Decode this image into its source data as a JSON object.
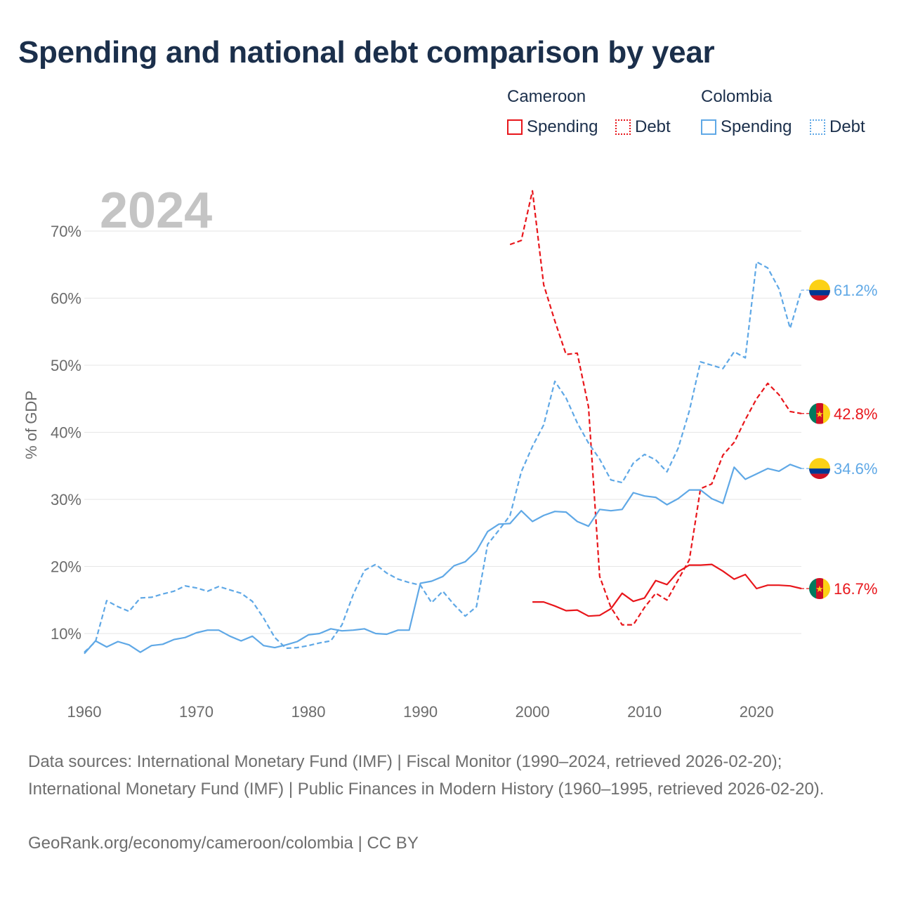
{
  "title": "Spending and national debt comparison by year",
  "legend": {
    "groups": [
      {
        "country": "Cameroon",
        "color": "#e8161b",
        "spending_label": "Spending",
        "debt_label": "Debt"
      },
      {
        "country": "Colombia",
        "color": "#5fa8e6",
        "spending_label": "Spending",
        "debt_label": "Debt"
      }
    ]
  },
  "chart_data": {
    "type": "line",
    "title": "Spending and national debt comparison by year",
    "ylabel": "% of GDP",
    "xlabel": "",
    "year_shown": "2024",
    "xlim": [
      1960,
      2024
    ],
    "ylim": [
      3,
      75
    ],
    "x_ticks": [
      1960,
      1970,
      1980,
      1990,
      2000,
      2010,
      2020
    ],
    "y_ticks": [
      10,
      20,
      30,
      40,
      50,
      60,
      70
    ],
    "y_tick_labels": [
      "10%",
      "20%",
      "30%",
      "40%",
      "50%",
      "60%",
      "70%"
    ],
    "series": [
      {
        "name": "Cameroon Spending",
        "country": "Cameroon",
        "metric": "Spending",
        "color": "#e8161b",
        "dash": false,
        "flag": "cameroon",
        "end_label": "16.7%",
        "points": [
          [
            2000,
            14.7
          ],
          [
            2001,
            14.7
          ],
          [
            2002,
            14.1
          ],
          [
            2003,
            13.4
          ],
          [
            2004,
            13.5
          ],
          [
            2005,
            12.6
          ],
          [
            2006,
            12.7
          ],
          [
            2007,
            13.7
          ],
          [
            2008,
            16.0
          ],
          [
            2009,
            14.8
          ],
          [
            2010,
            15.3
          ],
          [
            2011,
            17.9
          ],
          [
            2012,
            17.3
          ],
          [
            2013,
            19.2
          ],
          [
            2014,
            20.2
          ],
          [
            2015,
            20.2
          ],
          [
            2016,
            20.3
          ],
          [
            2017,
            19.3
          ],
          [
            2018,
            18.1
          ],
          [
            2019,
            18.8
          ],
          [
            2020,
            16.7
          ],
          [
            2021,
            17.2
          ],
          [
            2022,
            17.2
          ],
          [
            2023,
            17.1
          ],
          [
            2024,
            16.7
          ]
        ]
      },
      {
        "name": "Cameroon Debt",
        "country": "Cameroon",
        "metric": "Debt",
        "color": "#e8161b",
        "dash": true,
        "flag": "cameroon",
        "end_label": "42.8%",
        "points": [
          [
            1998,
            68.0
          ],
          [
            1999,
            68.6
          ],
          [
            2000,
            76.0
          ],
          [
            2001,
            62.0
          ],
          [
            2002,
            56.6
          ],
          [
            2003,
            51.6
          ],
          [
            2004,
            51.8
          ],
          [
            2005,
            43.8
          ],
          [
            2006,
            18.5
          ],
          [
            2007,
            13.9
          ],
          [
            2008,
            11.3
          ],
          [
            2009,
            11.3
          ],
          [
            2010,
            13.9
          ],
          [
            2011,
            16.0
          ],
          [
            2012,
            15.0
          ],
          [
            2013,
            18.0
          ],
          [
            2014,
            21.0
          ],
          [
            2015,
            31.6
          ],
          [
            2016,
            32.3
          ],
          [
            2017,
            36.6
          ],
          [
            2018,
            38.5
          ],
          [
            2019,
            41.9
          ],
          [
            2020,
            45.0
          ],
          [
            2021,
            47.3
          ],
          [
            2022,
            45.6
          ],
          [
            2023,
            43.1
          ],
          [
            2024,
            42.8
          ]
        ]
      },
      {
        "name": "Colombia Spending",
        "country": "Colombia",
        "metric": "Spending",
        "color": "#5fa8e6",
        "dash": false,
        "flag": "colombia",
        "end_label": "34.6%",
        "points": [
          [
            1960,
            7.0
          ],
          [
            1961,
            8.9
          ],
          [
            1962,
            8.0
          ],
          [
            1963,
            8.8
          ],
          [
            1964,
            8.3
          ],
          [
            1965,
            7.2
          ],
          [
            1966,
            8.2
          ],
          [
            1967,
            8.4
          ],
          [
            1968,
            9.1
          ],
          [
            1969,
            9.4
          ],
          [
            1970,
            10.1
          ],
          [
            1971,
            10.5
          ],
          [
            1972,
            10.5
          ],
          [
            1973,
            9.6
          ],
          [
            1974,
            8.9
          ],
          [
            1975,
            9.6
          ],
          [
            1976,
            8.2
          ],
          [
            1977,
            7.9
          ],
          [
            1978,
            8.3
          ],
          [
            1979,
            8.8
          ],
          [
            1980,
            9.8
          ],
          [
            1981,
            10.0
          ],
          [
            1982,
            10.7
          ],
          [
            1983,
            10.4
          ],
          [
            1984,
            10.5
          ],
          [
            1985,
            10.7
          ],
          [
            1986,
            10.0
          ],
          [
            1987,
            9.9
          ],
          [
            1988,
            10.5
          ],
          [
            1989,
            10.5
          ],
          [
            1990,
            17.5
          ],
          [
            1991,
            17.8
          ],
          [
            1992,
            18.5
          ],
          [
            1993,
            20.1
          ],
          [
            1994,
            20.7
          ],
          [
            1995,
            22.3
          ],
          [
            1996,
            25.2
          ],
          [
            1997,
            26.3
          ],
          [
            1998,
            26.4
          ],
          [
            1999,
            28.3
          ],
          [
            2000,
            26.7
          ],
          [
            2001,
            27.6
          ],
          [
            2002,
            28.2
          ],
          [
            2003,
            28.1
          ],
          [
            2004,
            26.7
          ],
          [
            2005,
            26.0
          ],
          [
            2006,
            28.5
          ],
          [
            2007,
            28.3
          ],
          [
            2008,
            28.5
          ],
          [
            2009,
            31.0
          ],
          [
            2010,
            30.5
          ],
          [
            2011,
            30.3
          ],
          [
            2012,
            29.2
          ],
          [
            2013,
            30.1
          ],
          [
            2014,
            31.4
          ],
          [
            2015,
            31.4
          ],
          [
            2016,
            30.1
          ],
          [
            2017,
            29.4
          ],
          [
            2018,
            34.8
          ],
          [
            2019,
            33.0
          ],
          [
            2020,
            33.8
          ],
          [
            2021,
            34.6
          ],
          [
            2022,
            34.2
          ],
          [
            2023,
            35.2
          ],
          [
            2024,
            34.6
          ]
        ]
      },
      {
        "name": "Colombia Debt",
        "country": "Colombia",
        "metric": "Debt",
        "color": "#5fa8e6",
        "dash": true,
        "flag": "colombia",
        "end_label": "61.2%",
        "points": [
          [
            1960,
            7.2
          ],
          [
            1961,
            8.8
          ],
          [
            1962,
            14.9
          ],
          [
            1963,
            14.0
          ],
          [
            1964,
            13.3
          ],
          [
            1965,
            15.3
          ],
          [
            1966,
            15.4
          ],
          [
            1967,
            15.9
          ],
          [
            1968,
            16.3
          ],
          [
            1969,
            17.1
          ],
          [
            1970,
            16.8
          ],
          [
            1971,
            16.3
          ],
          [
            1972,
            17.0
          ],
          [
            1973,
            16.5
          ],
          [
            1974,
            16.0
          ],
          [
            1975,
            14.8
          ],
          [
            1976,
            12.3
          ],
          [
            1977,
            9.4
          ],
          [
            1978,
            7.8
          ],
          [
            1979,
            7.9
          ],
          [
            1980,
            8.2
          ],
          [
            1981,
            8.6
          ],
          [
            1982,
            8.9
          ],
          [
            1983,
            11.3
          ],
          [
            1984,
            15.8
          ],
          [
            1985,
            19.4
          ],
          [
            1986,
            20.3
          ],
          [
            1987,
            19.0
          ],
          [
            1988,
            18.1
          ],
          [
            1989,
            17.6
          ],
          [
            1990,
            17.2
          ],
          [
            1991,
            14.6
          ],
          [
            1992,
            16.3
          ],
          [
            1993,
            14.3
          ],
          [
            1994,
            12.6
          ],
          [
            1995,
            14.0
          ],
          [
            1996,
            23.3
          ],
          [
            1997,
            25.4
          ],
          [
            1998,
            27.6
          ],
          [
            1999,
            34.1
          ],
          [
            2000,
            37.9
          ],
          [
            2001,
            41.1
          ],
          [
            2002,
            47.6
          ],
          [
            2003,
            45.1
          ],
          [
            2004,
            41.4
          ],
          [
            2005,
            38.4
          ],
          [
            2006,
            36.0
          ],
          [
            2007,
            32.9
          ],
          [
            2008,
            32.5
          ],
          [
            2009,
            35.4
          ],
          [
            2010,
            36.7
          ],
          [
            2011,
            35.9
          ],
          [
            2012,
            34.1
          ],
          [
            2013,
            37.6
          ],
          [
            2014,
            43.2
          ],
          [
            2015,
            50.5
          ],
          [
            2016,
            50.0
          ],
          [
            2017,
            49.5
          ],
          [
            2018,
            52.0
          ],
          [
            2019,
            51.1
          ],
          [
            2020,
            65.4
          ],
          [
            2021,
            64.5
          ],
          [
            2022,
            61.4
          ],
          [
            2023,
            55.5
          ],
          [
            2024,
            61.2
          ]
        ]
      }
    ]
  },
  "footer": {
    "sources": "Data sources: International Monetary Fund (IMF) | Fiscal Monitor (1990–2024, retrieved 2026-02-20); International Monetary Fund (IMF) | Public Finances in Modern History (1960–1995, retrieved 2026-02-20).",
    "credit": "GeoRank.org/economy/cameroon/colombia | CC BY"
  }
}
